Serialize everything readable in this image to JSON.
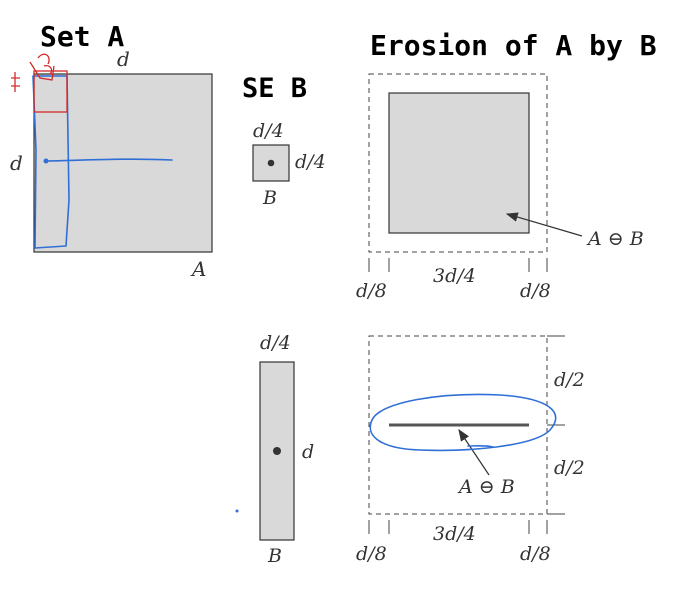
{
  "headings": {
    "set_a": "Set A",
    "se_b": "SE B",
    "erosion": "Erosion of A by B"
  },
  "set_a": {
    "top_label": "d",
    "side_label": "d",
    "corner_label": "A"
  },
  "se_square": {
    "top_label": "d/4",
    "side_label": "d/4",
    "bottom_label": "B"
  },
  "erosion_top": {
    "result_label": "A ⊖ B",
    "dim_left": "d/8",
    "dim_mid": "3d/4",
    "dim_right": "d/8"
  },
  "se_bar": {
    "top_label": "d/4",
    "side_label": "d",
    "bottom_label": "B"
  },
  "erosion_bottom": {
    "result_label": "A ⊖ B",
    "dim_upper": "d/2",
    "dim_lower": "d/2",
    "dim_left": "d/8",
    "dim_mid": "3d/4",
    "dim_right": "d/8"
  },
  "colors": {
    "shape_fill": "#d9d9d9",
    "annotation_blue": "#2f6fd6",
    "annotation_red": "#d42a2a"
  }
}
